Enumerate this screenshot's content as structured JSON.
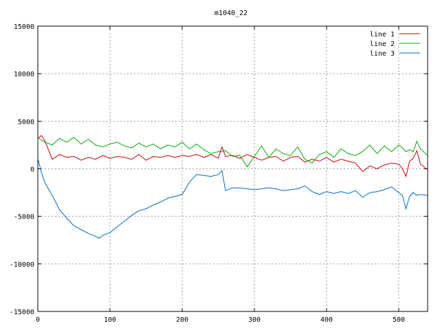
{
  "chart_data": {
    "type": "line",
    "title": "m1040_22",
    "xlabel": "",
    "ylabel": "",
    "xlim": [
      0,
      540
    ],
    "ylim": [
      -15000,
      15000
    ],
    "x_ticks": [
      "0",
      "100",
      "200",
      "300",
      "400",
      "500"
    ],
    "y_ticks": [
      "-15000",
      "-10000",
      "-5000",
      "0",
      "5000",
      "10000",
      "15000"
    ],
    "grid": true,
    "legend_position": "top-right",
    "series": [
      {
        "name": "line 1",
        "color": "#cc0000",
        "x": [
          0,
          5,
          10,
          20,
          30,
          40,
          50,
          60,
          70,
          80,
          90,
          100,
          110,
          120,
          130,
          140,
          150,
          160,
          170,
          180,
          190,
          200,
          210,
          220,
          230,
          240,
          250,
          255,
          260,
          270,
          280,
          290,
          300,
          310,
          320,
          330,
          340,
          350,
          360,
          370,
          380,
          390,
          400,
          410,
          420,
          430,
          440,
          450,
          460,
          470,
          480,
          490,
          500,
          505,
          510,
          515,
          520,
          525,
          530,
          540
        ],
        "y": [
          3200,
          3500,
          2900,
          1000,
          1500,
          1200,
          1300,
          900,
          1200,
          1000,
          1400,
          1100,
          1300,
          1200,
          1000,
          1500,
          900,
          1300,
          1200,
          1400,
          1200,
          1400,
          1300,
          1500,
          1200,
          1500,
          1100,
          2300,
          1300,
          1400,
          1100,
          1500,
          1200,
          900,
          1200,
          1300,
          800,
          1200,
          1300,
          700,
          1000,
          800,
          1200,
          700,
          1000,
          800,
          600,
          -300,
          300,
          0,
          400,
          600,
          500,
          0,
          -800,
          800,
          1100,
          1900,
          500,
          -100
        ]
      },
      {
        "name": "line 2",
        "color": "#00aa00",
        "x": [
          0,
          5,
          10,
          20,
          30,
          40,
          50,
          60,
          70,
          80,
          90,
          100,
          110,
          120,
          130,
          140,
          150,
          160,
          170,
          180,
          190,
          200,
          210,
          220,
          230,
          240,
          250,
          260,
          270,
          280,
          290,
          300,
          310,
          320,
          330,
          340,
          350,
          360,
          370,
          380,
          390,
          400,
          410,
          420,
          430,
          440,
          450,
          460,
          470,
          480,
          490,
          500,
          505,
          510,
          515,
          520,
          525,
          530,
          540
        ],
        "y": [
          3300,
          3000,
          2800,
          2500,
          3200,
          2800,
          3300,
          2600,
          3100,
          2500,
          2300,
          2600,
          2800,
          2400,
          2200,
          2700,
          2300,
          2600,
          2100,
          2500,
          2300,
          2800,
          2100,
          2600,
          2000,
          1600,
          1800,
          1900,
          1300,
          1400,
          200,
          1300,
          2400,
          1200,
          2100,
          1600,
          1400,
          2300,
          1000,
          600,
          1500,
          1800,
          1200,
          2100,
          1600,
          1400,
          1800,
          2500,
          1600,
          2400,
          1800,
          2500,
          2200,
          1800,
          2000,
          1800,
          2900,
          2100,
          1400
        ]
      },
      {
        "name": "line 3",
        "color": "#0066cc",
        "x": [
          0,
          5,
          10,
          20,
          30,
          40,
          50,
          60,
          70,
          80,
          85,
          90,
          100,
          110,
          120,
          130,
          140,
          150,
          160,
          170,
          180,
          190,
          200,
          210,
          215,
          220,
          230,
          240,
          250,
          255,
          260,
          270,
          280,
          290,
          300,
          310,
          320,
          330,
          340,
          350,
          360,
          370,
          380,
          390,
          400,
          410,
          420,
          430,
          440,
          450,
          460,
          470,
          480,
          490,
          500,
          505,
          510,
          515,
          520,
          525,
          530,
          540
        ],
        "y": [
          1100,
          -400,
          -1500,
          -2800,
          -4300,
          -5200,
          -6000,
          -6400,
          -6800,
          -7100,
          -7300,
          -7000,
          -6700,
          -6100,
          -5500,
          -4900,
          -4400,
          -4200,
          -3800,
          -3500,
          -3100,
          -2900,
          -2700,
          -1400,
          -1000,
          -600,
          -700,
          -800,
          -600,
          -200,
          -2300,
          -2000,
          -2000,
          -2100,
          -2200,
          -2100,
          -2000,
          -2100,
          -2300,
          -2200,
          -2100,
          -1800,
          -2400,
          -2700,
          -2400,
          -2600,
          -2400,
          -2600,
          -2300,
          -3000,
          -2500,
          -2400,
          -2200,
          -1900,
          -2500,
          -2800,
          -4200,
          -2900,
          -2500,
          -2800,
          -2700,
          -2800
        ]
      }
    ]
  }
}
